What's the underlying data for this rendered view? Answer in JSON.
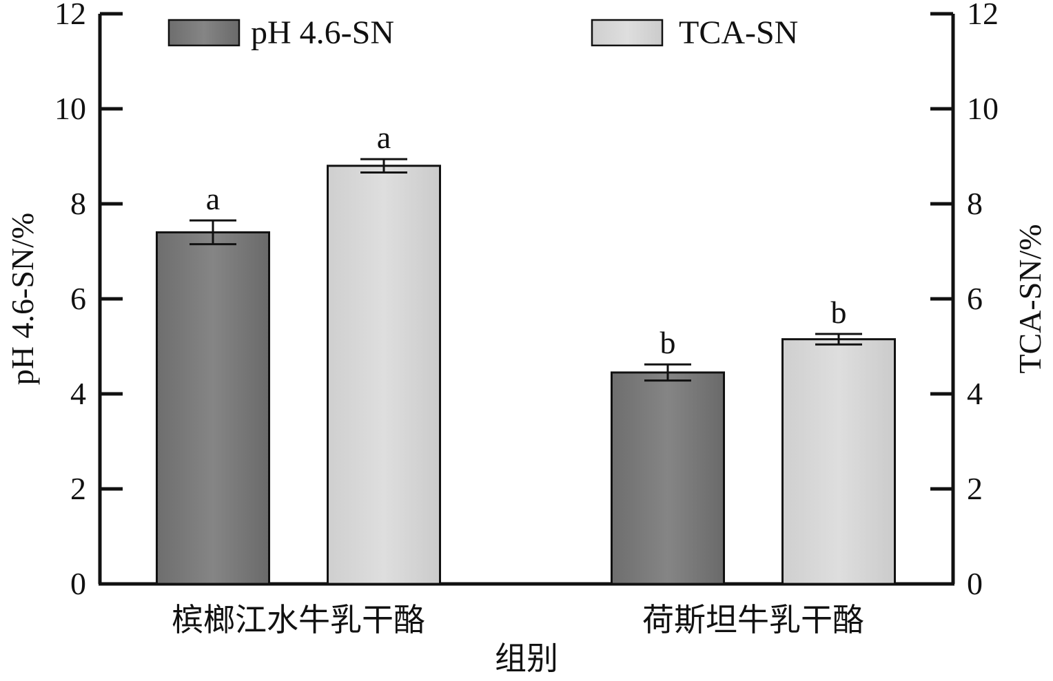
{
  "chart_data": {
    "type": "bar",
    "categories": [
      "槟榔江水牛乳干酪",
      "荷斯坦牛乳干酪"
    ],
    "series": [
      {
        "name": "pH 4.6-SN",
        "values": [
          7.4,
          4.45
        ],
        "errors": [
          0.25,
          0.17
        ],
        "labels": [
          "a",
          "b"
        ],
        "color": "#7a7a7a"
      },
      {
        "name": "TCA-SN",
        "values": [
          8.8,
          5.15
        ],
        "errors": [
          0.14,
          0.11
        ],
        "labels": [
          "a",
          "b"
        ],
        "color": "#d6d6d6"
      }
    ],
    "xlabel": "组别",
    "ylabel_left": "pH 4.6-SN/%",
    "ylabel_right": "TCA-SN/%",
    "ylim": [
      0,
      12
    ],
    "yticks": [
      0,
      2,
      4,
      6,
      8,
      10,
      12
    ],
    "legend_position": "top",
    "grid": false
  }
}
